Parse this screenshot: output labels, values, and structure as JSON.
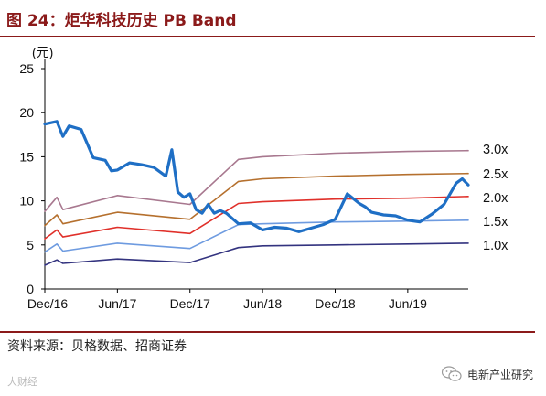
{
  "header": {
    "figure_label": "图 24：",
    "title_text": "炬华科技历史 PB Band"
  },
  "footer": {
    "source": "资料来源：贝格数据、招商证券"
  },
  "watermarks": {
    "left": "大财经",
    "right": "电新产业研究"
  },
  "colors": {
    "title": "#8B1A1A",
    "price": "#1F6FC5",
    "band_1_0": "#33337F",
    "band_1_5": "#6E9BE0",
    "band_2_0": "#E0302A",
    "band_2_5": "#B5702E",
    "band_3_0": "#A8788F"
  },
  "chart_data": {
    "type": "line",
    "title": "炬华科技历史 PB Band",
    "ylabel": "(元)",
    "ylim": [
      0,
      25
    ],
    "yticks": [
      0,
      5,
      10,
      15,
      20,
      25
    ],
    "x_tick_labels": [
      "Dec/16",
      "Jun/17",
      "Dec/17",
      "Jun/18",
      "Dec/18",
      "Jun/19"
    ],
    "x_tick_dates": [
      "2016-12",
      "2017-06",
      "2017-12",
      "2018-06",
      "2018-12",
      "2019-06"
    ],
    "x_end_date": "2019-11",
    "series": [
      {
        "name": "Price",
        "color_key": "price",
        "x": [
          "2016-12",
          "2017-01",
          "2017-01",
          "2017-02",
          "2017-03",
          "2017-03",
          "2017-04",
          "2017-05",
          "2017-05",
          "2017-06",
          "2017-07",
          "2017-08",
          "2017-09",
          "2017-10",
          "2017-10",
          "2017-11",
          "2017-11",
          "2017-12",
          "2017-12",
          "2018-01",
          "2018-01",
          "2018-02",
          "2018-02",
          "2018-03",
          "2018-04",
          "2018-05",
          "2018-06",
          "2018-07",
          "2018-08",
          "2018-09",
          "2018-10",
          "2018-11",
          "2018-12",
          "2019-01",
          "2019-02",
          "2019-02",
          "2019-03",
          "2019-04",
          "2019-05",
          "2019-06",
          "2019-07",
          "2019-08",
          "2019-09",
          "2019-10",
          "2019-10",
          "2019-11"
        ],
        "y": [
          18.7,
          19.0,
          17.3,
          18.5,
          18.1,
          16.5,
          14.9,
          14.6,
          13.4,
          13.5,
          14.3,
          14.1,
          13.8,
          12.8,
          15.8,
          11.0,
          10.4,
          10.8,
          9.0,
          8.6,
          9.6,
          8.6,
          8.9,
          8.6,
          7.4,
          7.5,
          6.7,
          7.0,
          6.9,
          6.5,
          6.9,
          7.3,
          7.9,
          10.8,
          9.7,
          9.3,
          8.7,
          8.4,
          8.3,
          7.8,
          7.6,
          8.5,
          9.6,
          12.0,
          12.5,
          11.8
        ]
      },
      {
        "name": "1.0x",
        "color_key": "band_1_0",
        "x": [
          "2016-12",
          "2017-01",
          "2017-01",
          "2017-06",
          "2017-12",
          "2018-04",
          "2018-06",
          "2018-12",
          "2019-06",
          "2019-11"
        ],
        "y": [
          2.7,
          3.3,
          2.9,
          3.4,
          3.0,
          4.7,
          4.9,
          5.0,
          5.1,
          5.2
        ]
      },
      {
        "name": "1.5x",
        "color_key": "band_1_5",
        "x": [
          "2016-12",
          "2017-01",
          "2017-01",
          "2017-06",
          "2017-12",
          "2018-04",
          "2018-06",
          "2018-12",
          "2019-06",
          "2019-11"
        ],
        "y": [
          4.2,
          5.1,
          4.3,
          5.2,
          4.6,
          7.3,
          7.4,
          7.6,
          7.7,
          7.8
        ]
      },
      {
        "name": "2.0x",
        "color_key": "band_2_0",
        "x": [
          "2016-12",
          "2017-01",
          "2017-01",
          "2017-06",
          "2017-12",
          "2018-04",
          "2018-06",
          "2018-12",
          "2019-06",
          "2019-11"
        ],
        "y": [
          5.7,
          6.7,
          5.9,
          7.0,
          6.3,
          9.7,
          9.9,
          10.2,
          10.3,
          10.5
        ]
      },
      {
        "name": "2.5x",
        "color_key": "band_2_5",
        "x": [
          "2016-12",
          "2017-01",
          "2017-01",
          "2017-06",
          "2017-12",
          "2018-04",
          "2018-06",
          "2018-12",
          "2019-06",
          "2019-11"
        ],
        "y": [
          7.2,
          8.4,
          7.4,
          8.7,
          7.9,
          12.2,
          12.5,
          12.8,
          13.0,
          13.1
        ]
      },
      {
        "name": "3.0x",
        "color_key": "band_3_0",
        "x": [
          "2016-12",
          "2017-01",
          "2017-01",
          "2017-06",
          "2017-12",
          "2018-04",
          "2018-06",
          "2018-12",
          "2019-06",
          "2019-11"
        ],
        "y": [
          8.8,
          10.4,
          9.0,
          10.6,
          9.6,
          14.7,
          15.0,
          15.4,
          15.6,
          15.7
        ]
      }
    ],
    "band_labels": [
      "3.0x",
      "2.5x",
      "2.0x",
      "1.5x",
      "1.0x"
    ],
    "grid": false,
    "legend": "right-side labels"
  }
}
